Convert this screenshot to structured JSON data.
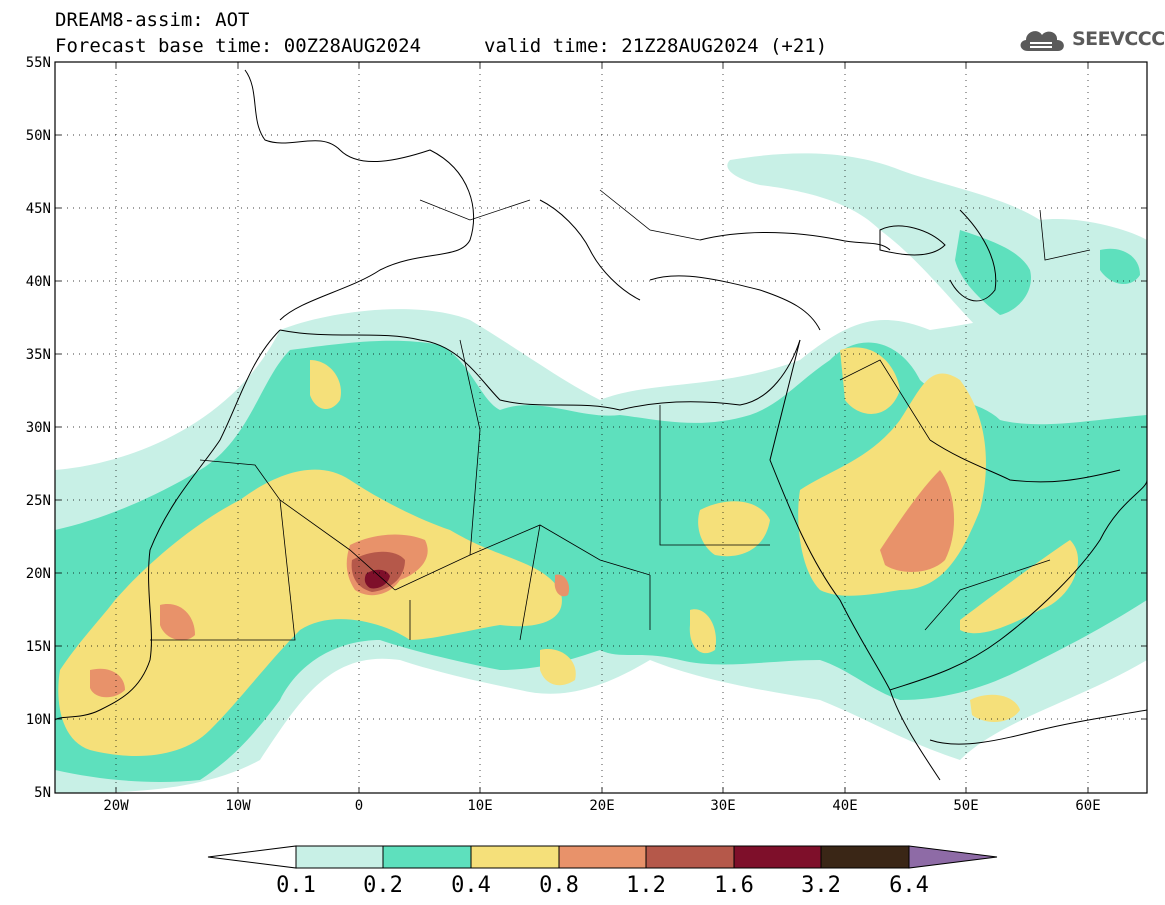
{
  "header": {
    "title": "DREAM8-assim: AOT",
    "base_time": "Forecast base time: 00Z28AUG2024",
    "valid_time": "valid time: 21Z28AUG2024 (+21)",
    "logo_text": "SEEVCCC"
  },
  "axes": {
    "lat_labels": [
      "55N",
      "50N",
      "45N",
      "40N",
      "35N",
      "30N",
      "25N",
      "20N",
      "15N",
      "10N",
      "5N"
    ],
    "lon_labels": [
      "20W",
      "10W",
      "0",
      "10E",
      "20E",
      "30E",
      "40E",
      "50E",
      "60E"
    ]
  },
  "colorbar": {
    "labels": [
      "0.1",
      "0.2",
      "0.4",
      "0.8",
      "1.2",
      "1.6",
      "3.2",
      "6.4"
    ],
    "colors": [
      "#ffffff",
      "#c8f0e6",
      "#5ee0bd",
      "#f5e07a",
      "#e8926a",
      "#b5584a",
      "#7e0f2a",
      "#3a2616",
      "#8e6ba6"
    ]
  },
  "levels": {
    "aot_0_1": "#c8f0e6",
    "aot_0_2": "#5ee0bd",
    "aot_0_4": "#f5e07a",
    "aot_0_8": "#e8926a",
    "aot_1_2": "#b5584a",
    "aot_1_6": "#7e0f2a"
  }
}
